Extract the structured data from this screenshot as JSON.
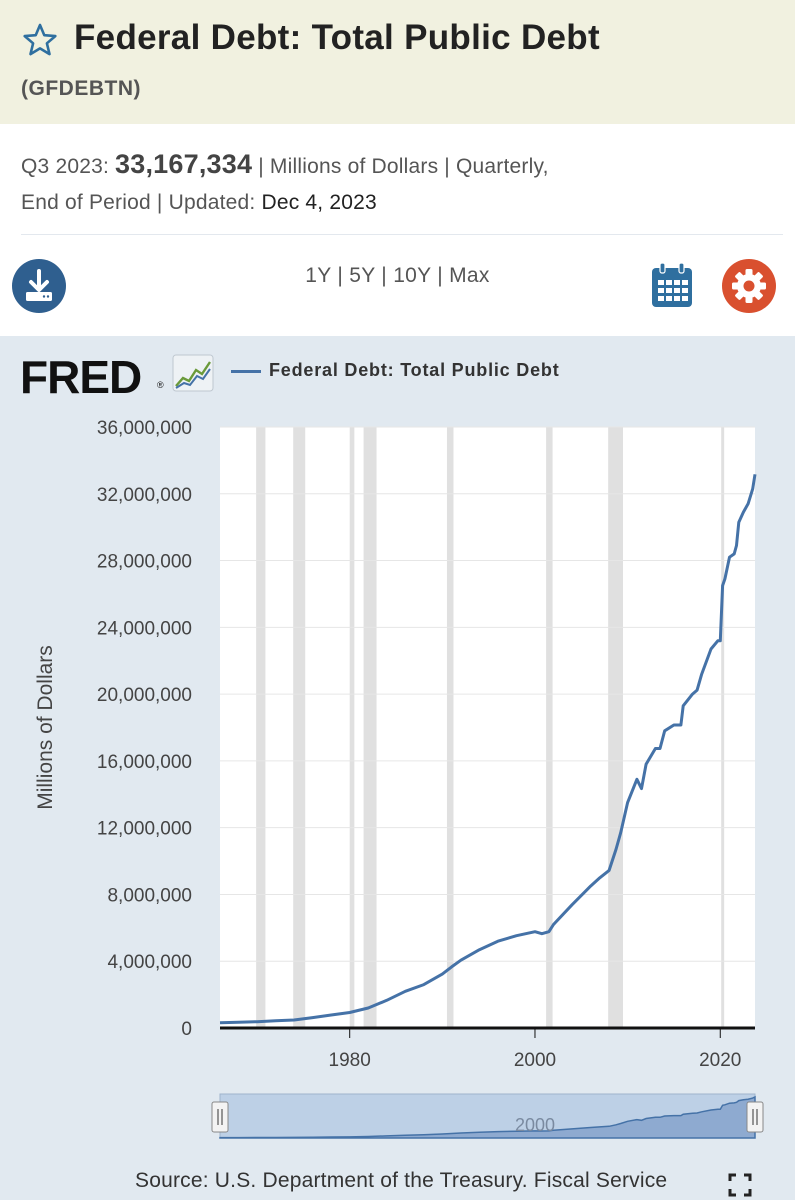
{
  "header": {
    "title": "Federal Debt: Total Public Debt",
    "series_id": "(GFDEBTN)"
  },
  "meta": {
    "period_label": "Q3 2023:",
    "latest_value": "33,167,334",
    "units_sep": "| Millions of Dollars | Quarterly,",
    "line2_prefix": "End of Period | Updated:",
    "updated": "Dec 4, 2023"
  },
  "toolbar": {
    "ranges": [
      "1Y",
      "5Y",
      "10Y",
      "Max"
    ],
    "separator": "|",
    "download_icon": "download-icon",
    "calendar_icon": "calendar-icon",
    "settings_icon": "gear-icon"
  },
  "logo": {
    "text": "FRED",
    "tm": "®"
  },
  "colors": {
    "series": "#4572a7",
    "recession": "#e0e0e0",
    "panel": "#e1e9f0",
    "header_bg": "#f1f1e0",
    "accent_blue": "#2f6f9f",
    "accent_red": "#d9502f"
  },
  "footer": {
    "source": "Source: U.S. Department of the Treasury. Fiscal Service"
  },
  "chart_data": {
    "type": "line",
    "title": "",
    "xlabel": "",
    "ylabel": "Millions of Dollars",
    "xlim": [
      1966.0,
      2023.75
    ],
    "ylim": [
      0,
      36000000
    ],
    "x_ticks": [
      1980,
      2000,
      2020
    ],
    "y_ticks": [
      0,
      4000000,
      8000000,
      12000000,
      16000000,
      20000000,
      24000000,
      28000000,
      32000000,
      36000000
    ],
    "y_tick_labels": [
      "0",
      "4,000,000",
      "8,000,000",
      "12,000,000",
      "16,000,000",
      "20,000,000",
      "24,000,000",
      "28,000,000",
      "32,000,000",
      "36,000,000"
    ],
    "grid": true,
    "legend": "top-left",
    "recessions": [
      [
        1969.9,
        1970.9
      ],
      [
        1973.9,
        1975.2
      ],
      [
        1980.0,
        1980.5
      ],
      [
        1981.5,
        1982.9
      ],
      [
        1990.5,
        1991.2
      ],
      [
        2001.2,
        2001.9
      ],
      [
        2007.9,
        2009.5
      ],
      [
        2020.1,
        2020.4
      ]
    ],
    "series": [
      {
        "name": "Federal Debt: Total Public Debt",
        "x": [
          1966.0,
          1968,
          1970,
          1972,
          1974,
          1976,
          1978,
          1980,
          1982,
          1984,
          1986,
          1988,
          1990,
          1991,
          1992,
          1994,
          1996,
          1998,
          2000,
          2000.75,
          2001.5,
          2002,
          2004,
          2006,
          2007,
          2008.0,
          2008.75,
          2009.25,
          2010,
          2011,
          2011.5,
          2012,
          2013,
          2013.5,
          2014,
          2015,
          2015.75,
          2016,
          2017,
          2017.5,
          2018,
          2019,
          2019.75,
          2020.0,
          2020.25,
          2020.5,
          2021,
          2021.5,
          2021.75,
          2022,
          2022.5,
          2023.0,
          2023.5,
          2023.75
        ],
        "values": [
          320000,
          350000,
          380000,
          430000,
          480000,
          620000,
          780000,
          930000,
          1200000,
          1660000,
          2200000,
          2600000,
          3230000,
          3660000,
          4060000,
          4690000,
          5200000,
          5530000,
          5770000,
          5650000,
          5770000,
          6200000,
          7380000,
          8500000,
          9000000,
          9440000,
          10700000,
          11700000,
          13500000,
          14900000,
          14340000,
          15800000,
          16740000,
          16740000,
          17800000,
          18150000,
          18150000,
          19300000,
          20000000,
          20240000,
          21200000,
          22700000,
          23200000,
          23200000,
          26500000,
          26900000,
          28200000,
          28400000,
          28900000,
          30300000,
          30900000,
          31400000,
          32300000,
          33167334
        ]
      }
    ]
  }
}
